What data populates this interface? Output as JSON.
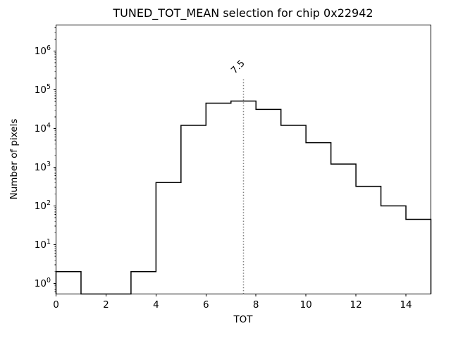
{
  "figure": {
    "background": "#ffffff"
  },
  "chart_data": {
    "type": "bar",
    "subtype": "step-histogram",
    "title": "TUNED_TOT_MEAN selection for chip 0x22942",
    "xlabel": "TOT",
    "ylabel": "Number of pixels",
    "yscale": "log",
    "grid": false,
    "legend": "none",
    "xlim": [
      0,
      15
    ],
    "ylim": [
      0.53,
      4700000
    ],
    "bin_edges": [
      0,
      1,
      2,
      3,
      4,
      5,
      6,
      7,
      8,
      9,
      10,
      11,
      12,
      13,
      14,
      15
    ],
    "counts": [
      2,
      0,
      0,
      2,
      400,
      12000,
      45000,
      51000,
      31000,
      12000,
      4300,
      1200,
      320,
      100,
      45
    ],
    "x_ticks": [
      0,
      2,
      4,
      6,
      8,
      10,
      12,
      14
    ],
    "y_tick_base": "10",
    "y_tick_exponents": [
      0,
      1,
      2,
      3,
      4,
      5,
      6
    ],
    "line_color": "#000000",
    "threshold_line": {
      "x": 7.5,
      "label": "7.5",
      "color": "#808080",
      "linestyle": "dotted",
      "label_rotation_deg": 45,
      "extends_to_fraction": 0.8
    }
  }
}
